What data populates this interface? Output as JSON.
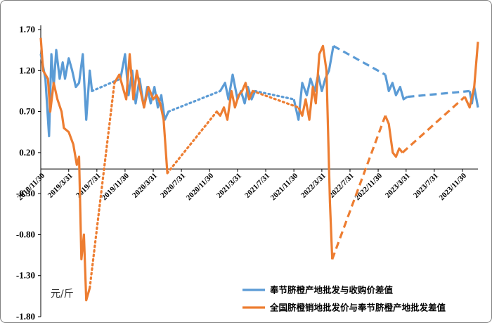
{
  "chart_data": {
    "type": "line",
    "title": "",
    "xlabel": "",
    "ylabel": "",
    "unit_label": "元/斤",
    "ylim": [
      -1.8,
      1.7
    ],
    "yticks": [
      "1.70",
      "1.20",
      "0.70",
      "0.20",
      "-0.30",
      "-0.80",
      "-1.30",
      "-1.80"
    ],
    "xticks": [
      "2018/11/30",
      "2019/3/31",
      "2019/7/31",
      "2019/11/30",
      "2020/3/31",
      "2020/7/31",
      "2020/11/30",
      "2021/3/31",
      "2021/7/31",
      "2021/11/30",
      "2022/3/31",
      "2022/7/31",
      "2022/11/30",
      "2023/3/31",
      "2023/7/31",
      "2023/11/30"
    ],
    "legend_position": "bottom-right",
    "grid": false,
    "series": [
      {
        "name": "奉节脐橙产地批发与收购价差值",
        "color": "#5B9BD5",
        "segments": [
          {
            "style": "solid",
            "points": [
              [
                "2018-11-30",
                1.4
              ],
              [
                "2018-12-20",
                1.1
              ],
              [
                "2019-01-05",
                0.4
              ],
              [
                "2019-01-15",
                1.4
              ],
              [
                "2019-01-25",
                1.0
              ],
              [
                "2019-02-05",
                1.45
              ],
              [
                "2019-02-20",
                1.1
              ],
              [
                "2019-03-05",
                1.3
              ],
              [
                "2019-03-15",
                1.1
              ],
              [
                "2019-03-31",
                1.35
              ],
              [
                "2019-04-15",
                1.2
              ],
              [
                "2019-05-01",
                1.0
              ],
              [
                "2019-05-15",
                1.05
              ],
              [
                "2019-05-31",
                1.4
              ],
              [
                "2019-06-15",
                0.6
              ],
              [
                "2019-06-30",
                1.2
              ],
              [
                "2019-07-10",
                0.95
              ]
            ]
          },
          {
            "style": "dotted",
            "points": [
              [
                "2019-07-10",
                0.95
              ],
              [
                "2019-11-10",
                1.1
              ]
            ]
          },
          {
            "style": "solid",
            "points": [
              [
                "2019-11-10",
                1.1
              ],
              [
                "2019-11-30",
                1.4
              ],
              [
                "2019-12-15",
                0.9
              ],
              [
                "2019-12-31",
                1.2
              ],
              [
                "2020-01-15",
                0.8
              ],
              [
                "2020-02-01",
                1.1
              ],
              [
                "2020-02-20",
                0.75
              ],
              [
                "2020-03-05",
                1.0
              ],
              [
                "2020-03-20",
                0.8
              ],
              [
                "2020-04-05",
                1.0
              ],
              [
                "2020-04-20",
                0.75
              ],
              [
                "2020-05-05",
                0.9
              ],
              [
                "2020-05-20",
                0.6
              ],
              [
                "2020-06-05",
                0.7
              ]
            ]
          },
          {
            "style": "dotted",
            "points": [
              [
                "2020-06-05",
                0.7
              ],
              [
                "2021-01-15",
                0.95
              ]
            ]
          },
          {
            "style": "solid",
            "points": [
              [
                "2021-01-15",
                0.95
              ],
              [
                "2021-02-05",
                1.05
              ],
              [
                "2021-02-20",
                0.85
              ],
              [
                "2021-03-10",
                1.15
              ],
              [
                "2021-03-31",
                0.85
              ],
              [
                "2021-04-15",
                0.95
              ],
              [
                "2021-05-01",
                0.8
              ],
              [
                "2021-05-15",
                1.0
              ],
              [
                "2021-05-31",
                0.85
              ],
              [
                "2021-06-15",
                0.95
              ]
            ]
          },
          {
            "style": "dotted",
            "points": [
              [
                "2021-06-15",
                0.95
              ],
              [
                "2021-11-30",
                0.85
              ]
            ]
          },
          {
            "style": "solid",
            "points": [
              [
                "2021-11-30",
                0.85
              ],
              [
                "2021-12-20",
                0.6
              ],
              [
                "2022-01-05",
                1.05
              ],
              [
                "2022-01-25",
                0.9
              ],
              [
                "2022-02-10",
                1.1
              ],
              [
                "2022-02-28",
                0.95
              ],
              [
                "2022-03-15",
                1.15
              ],
              [
                "2022-03-31",
                0.95
              ],
              [
                "2022-04-15",
                1.1
              ],
              [
                "2022-05-01",
                1.2
              ],
              [
                "2022-05-20",
                1.5
              ]
            ]
          },
          {
            "style": "dashed",
            "points": [
              [
                "2022-05-20",
                1.5
              ],
              [
                "2022-12-31",
                1.15
              ]
            ]
          },
          {
            "style": "solid",
            "points": [
              [
                "2022-12-31",
                1.15
              ],
              [
                "2023-01-15",
                0.95
              ],
              [
                "2023-01-31",
                1.05
              ],
              [
                "2023-02-15",
                0.9
              ],
              [
                "2023-03-05",
                1.0
              ],
              [
                "2023-03-20",
                0.85
              ],
              [
                "2023-04-05",
                0.88
              ]
            ]
          },
          {
            "style": "dashed",
            "points": [
              [
                "2023-04-05",
                0.88
              ],
              [
                "2023-12-31",
                0.95
              ]
            ]
          },
          {
            "style": "solid",
            "points": [
              [
                "2023-12-31",
                0.95
              ],
              [
                "2024-01-10",
                0.8
              ],
              [
                "2024-01-20",
                1.0
              ],
              [
                "2024-02-05",
                0.75
              ]
            ]
          }
        ]
      },
      {
        "name": "全国脐橙销地批发价与奉节脐橙产地批发差值",
        "color": "#ED7D31",
        "segments": [
          {
            "style": "solid",
            "points": [
              [
                "2018-11-30",
                1.6
              ],
              [
                "2018-12-10",
                1.2
              ],
              [
                "2018-12-31",
                1.1
              ],
              [
                "2019-01-10",
                0.7
              ],
              [
                "2019-01-25",
                1.05
              ],
              [
                "2019-02-10",
                0.85
              ],
              [
                "2019-02-28",
                0.7
              ],
              [
                "2019-03-10",
                0.5
              ],
              [
                "2019-03-31",
                0.45
              ],
              [
                "2019-04-20",
                0.3
              ],
              [
                "2019-05-05",
                0.05
              ],
              [
                "2019-05-15",
                0.15
              ],
              [
                "2019-05-25",
                -1.1
              ],
              [
                "2019-06-05",
                -0.8
              ],
              [
                "2019-06-15",
                -1.6
              ],
              [
                "2019-06-30",
                -1.45
              ]
            ]
          },
          {
            "style": "dotted",
            "points": [
              [
                "2019-06-30",
                -1.45
              ],
              [
                "2019-10-15",
                1.05
              ]
            ]
          },
          {
            "style": "solid",
            "points": [
              [
                "2019-10-15",
                1.05
              ],
              [
                "2019-11-05",
                1.15
              ],
              [
                "2019-11-20",
                1.0
              ],
              [
                "2019-12-05",
                0.85
              ],
              [
                "2019-12-20",
                1.4
              ],
              [
                "2020-01-05",
                0.85
              ],
              [
                "2020-01-20",
                1.2
              ],
              [
                "2020-02-05",
                0.95
              ],
              [
                "2020-02-20",
                0.75
              ],
              [
                "2020-03-10",
                1.0
              ],
              [
                "2020-03-31",
                0.85
              ],
              [
                "2020-04-15",
                0.9
              ],
              [
                "2020-04-30",
                0.8
              ],
              [
                "2020-05-15",
                0.6
              ],
              [
                "2020-05-31",
                -0.05
              ]
            ]
          },
          {
            "style": "dotted",
            "points": [
              [
                "2020-05-31",
                -0.05
              ],
              [
                "2020-12-31",
                0.7
              ]
            ]
          },
          {
            "style": "solid",
            "points": [
              [
                "2020-12-31",
                0.7
              ],
              [
                "2021-01-15",
                0.65
              ],
              [
                "2021-01-31",
                0.75
              ],
              [
                "2021-02-15",
                0.6
              ],
              [
                "2021-03-05",
                0.95
              ],
              [
                "2021-03-20",
                0.75
              ],
              [
                "2021-04-05",
                0.9
              ],
              [
                "2021-04-20",
                0.95
              ],
              [
                "2021-05-05",
                1.05
              ],
              [
                "2021-05-20",
                0.85
              ],
              [
                "2021-06-05",
                0.95
              ]
            ]
          },
          {
            "style": "dotted",
            "points": [
              [
                "2021-06-05",
                0.95
              ],
              [
                "2021-12-20",
                0.75
              ]
            ]
          },
          {
            "style": "solid",
            "points": [
              [
                "2021-12-20",
                0.75
              ],
              [
                "2022-01-05",
                0.65
              ],
              [
                "2022-01-20",
                0.85
              ],
              [
                "2022-02-05",
                0.6
              ],
              [
                "2022-02-20",
                1.0
              ],
              [
                "2022-03-05",
                0.8
              ],
              [
                "2022-03-20",
                1.4
              ],
              [
                "2022-04-05",
                1.5
              ],
              [
                "2022-04-20",
                1.2
              ],
              [
                "2022-05-05",
                -0.4
              ],
              [
                "2022-05-15",
                -1.1
              ]
            ]
          },
          {
            "style": "dashed",
            "points": [
              [
                "2022-05-15",
                -1.1
              ],
              [
                "2022-12-31",
                0.65
              ]
            ]
          },
          {
            "style": "solid",
            "points": [
              [
                "2022-12-31",
                0.65
              ],
              [
                "2023-01-15",
                0.55
              ],
              [
                "2023-02-01",
                0.2
              ],
              [
                "2023-02-15",
                0.15
              ],
              [
                "2023-03-01",
                0.25
              ],
              [
                "2023-03-15",
                0.2
              ]
            ]
          },
          {
            "style": "dashed",
            "points": [
              [
                "2023-03-15",
                0.2
              ],
              [
                "2023-12-10",
                0.88
              ]
            ]
          },
          {
            "style": "solid",
            "points": [
              [
                "2023-12-10",
                0.88
              ],
              [
                "2023-12-31",
                0.75
              ],
              [
                "2024-01-20",
                1.0
              ],
              [
                "2024-02-05",
                1.55
              ]
            ]
          }
        ]
      }
    ]
  }
}
